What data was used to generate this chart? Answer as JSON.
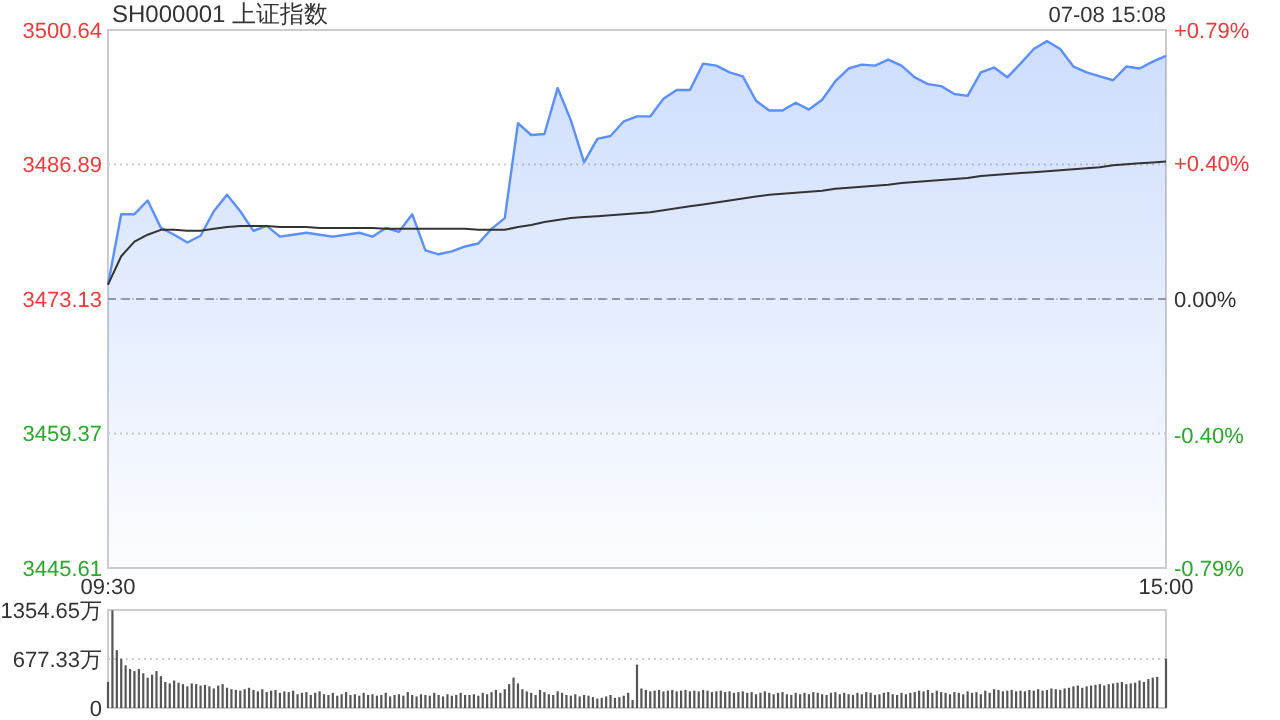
{
  "chart_data": [
    {
      "type": "line",
      "title": "SH000001 上证指数",
      "annotations": [
        "07-08 15:08"
      ],
      "categories": [
        "09:30",
        null,
        null,
        null,
        null,
        null,
        null,
        null,
        null,
        null,
        null,
        null,
        null,
        null,
        null,
        null,
        null,
        null,
        null,
        null,
        null,
        null,
        null,
        null,
        null,
        null,
        null,
        null,
        null,
        null,
        null,
        null,
        null,
        null,
        null,
        null,
        null,
        null,
        null,
        null,
        null,
        null,
        null,
        null,
        null,
        null,
        null,
        null,
        null,
        null,
        null,
        null,
        null,
        null,
        null,
        null,
        null,
        null,
        null,
        null,
        null,
        null,
        null,
        null,
        null,
        null,
        null,
        null,
        null,
        null,
        null,
        null,
        null,
        null,
        null,
        null,
        null,
        null,
        null,
        null,
        "15:00"
      ],
      "ylim": [
        3445.61,
        3500.64
      ],
      "yticks": [
        3445.61,
        3459.37,
        3473.13,
        3486.89,
        3500.64
      ],
      "y2lim": [
        -0.79,
        0.79
      ],
      "y2ticks": [
        {
          "value": -0.79,
          "label": "-0.79%"
        },
        {
          "value": -0.4,
          "label": "-0.40%"
        },
        {
          "value": 0,
          "label": "0.00%"
        },
        {
          "value": 0.4,
          "label": "+0.40%"
        },
        {
          "value": 0.79,
          "label": "+0.79%"
        }
      ],
      "grid": "y",
      "ref_lines": [
        {
          "axis": "y",
          "value": 3473.13,
          "line_style": "dashed",
          "color": "#999999"
        }
      ],
      "series": [
        {
          "type": "area",
          "color": "#5b8ff9",
          "values": [
            3474.6,
            3481.8,
            3481.8,
            3483.2,
            3480.4,
            3479.7,
            3478.9,
            3479.6,
            3482.1,
            3483.8,
            3482.1,
            3480.1,
            3480.6,
            3479.5,
            3479.7,
            3479.9,
            3479.7,
            3479.5,
            3479.7,
            3479.9,
            3479.5,
            3480.4,
            3480.0,
            3481.8,
            3478.1,
            3477.7,
            3478.0,
            3478.5,
            3478.8,
            3480.3,
            3481.4,
            3491.1,
            3489.9,
            3490.0,
            3494.7,
            3491.4,
            3487.1,
            3489.5,
            3489.8,
            3491.3,
            3491.8,
            3491.8,
            3493.6,
            3494.5,
            3494.5,
            3497.2,
            3497.0,
            3496.3,
            3495.9,
            3493.4,
            3492.4,
            3492.4,
            3493.2,
            3492.5,
            3493.5,
            3495.4,
            3496.7,
            3497.1,
            3497.0,
            3497.6,
            3497.0,
            3495.8,
            3495.1,
            3494.9,
            3494.1,
            3493.9,
            3496.3,
            3496.8,
            3495.8,
            3497.2,
            3498.7,
            3499.5,
            3498.7,
            3496.9,
            3496.3,
            3495.9,
            3495.5,
            3496.9,
            3496.7,
            3497.4,
            3498.0
          ]
        },
        {
          "color": "#333333",
          "values": [
            3474.6,
            3477.5,
            3479.0,
            3479.7,
            3480.2,
            3480.2,
            3480.1,
            3480.1,
            3480.3,
            3480.5,
            3480.6,
            3480.6,
            3480.6,
            3480.5,
            3480.5,
            3480.5,
            3480.4,
            3480.4,
            3480.4,
            3480.4,
            3480.4,
            3480.3,
            3480.3,
            3480.3,
            3480.3,
            3480.3,
            3480.3,
            3480.3,
            3480.2,
            3480.2,
            3480.2,
            3480.5,
            3480.7,
            3481.0,
            3481.2,
            3481.4,
            3481.5,
            3481.6,
            3481.7,
            3481.8,
            3481.9,
            3482.0,
            3482.2,
            3482.4,
            3482.6,
            3482.8,
            3483.0,
            3483.2,
            3483.4,
            3483.6,
            3483.8,
            3483.9,
            3484.0,
            3484.1,
            3484.2,
            3484.4,
            3484.5,
            3484.6,
            3484.7,
            3484.8,
            3485.0,
            3485.1,
            3485.2,
            3485.3,
            3485.4,
            3485.5,
            3485.7,
            3485.8,
            3485.9,
            3486.0,
            3486.1,
            3486.2,
            3486.3,
            3486.4,
            3486.5,
            3486.6,
            3486.8,
            3486.9,
            3487.0,
            3487.1,
            3487.2
          ]
        }
      ]
    },
    {
      "type": "bar",
      "ylim": [
        0,
        1354.65
      ],
      "yticks": [
        0,
        {
          "value": 677.33,
          "label": "677.33万"
        },
        {
          "value": 1354.65,
          "label": "1354.65万"
        }
      ],
      "grid": "y",
      "tick_labels": "y",
      "categories": [
        null,
        null,
        null,
        null,
        null,
        null,
        null,
        null,
        null,
        null,
        null,
        null,
        null,
        null,
        null,
        null,
        null,
        null,
        null,
        null,
        null,
        null,
        null,
        null,
        null,
        null,
        null,
        null,
        null,
        null,
        null,
        null,
        null,
        null,
        null,
        null,
        null,
        null,
        null,
        null,
        null,
        null,
        null,
        null,
        null,
        null,
        null,
        null,
        null,
        null,
        null,
        null,
        null,
        null,
        null,
        null,
        null,
        null,
        null,
        null,
        null,
        null,
        null,
        null,
        null,
        null,
        null,
        null,
        null,
        null,
        null,
        null,
        null,
        null,
        null,
        null,
        null,
        null,
        null,
        null,
        null,
        null,
        null,
        null,
        null,
        null,
        null,
        null,
        null,
        null,
        null,
        null,
        null,
        null,
        null,
        null,
        null,
        null,
        null,
        null,
        null,
        null,
        null,
        null,
        null,
        null,
        null,
        null,
        null,
        null,
        null,
        null,
        null,
        null,
        null,
        null,
        null,
        null,
        null,
        null,
        null,
        null,
        null,
        null,
        null,
        null,
        null,
        null,
        null,
        null,
        null,
        null,
        null,
        null,
        null,
        null,
        null,
        null,
        null,
        null,
        null,
        null,
        null,
        null,
        null,
        null,
        null,
        null,
        null,
        null,
        null,
        null,
        null,
        null,
        null,
        null,
        null,
        null,
        null,
        null,
        null,
        null,
        null,
        null,
        null,
        null,
        null,
        null,
        null,
        null,
        null,
        null,
        null,
        null,
        null,
        null,
        null,
        null,
        null,
        null,
        null,
        null,
        null,
        null,
        null,
        null,
        null,
        null,
        null,
        null,
        null,
        null,
        null,
        null,
        null,
        null,
        null,
        null,
        null,
        null,
        null,
        null,
        null,
        null,
        null,
        null,
        null,
        null,
        null,
        null,
        null,
        null,
        null,
        null,
        null,
        null,
        null,
        null,
        null,
        null,
        null,
        null,
        null,
        null,
        null,
        null,
        null,
        null,
        null,
        null,
        null,
        null,
        null,
        null,
        null,
        null,
        null,
        null,
        null,
        null,
        null
      ],
      "series": [
        {
          "color": "#555555",
          "values": [
            360,
            1350,
            800,
            680,
            590,
            540,
            510,
            540,
            480,
            420,
            460,
            510,
            440,
            360,
            340,
            380,
            350,
            330,
            300,
            340,
            330,
            310,
            320,
            300,
            270,
            310,
            330,
            280,
            260,
            250,
            240,
            260,
            280,
            250,
            230,
            260,
            220,
            240,
            250,
            210,
            230,
            220,
            240,
            190,
            210,
            220,
            180,
            210,
            230,
            190,
            180,
            210,
            170,
            190,
            220,
            180,
            190,
            170,
            210,
            180,
            190,
            170,
            180,
            210,
            160,
            180,
            190,
            170,
            220,
            180,
            160,
            190,
            180,
            170,
            210,
            180,
            160,
            190,
            170,
            180,
            210,
            180,
            180,
            190,
            170,
            210,
            190,
            220,
            250,
            210,
            260,
            330,
            420,
            340,
            260,
            230,
            210,
            180,
            250,
            220,
            190,
            180,
            230,
            210,
            180,
            170,
            190,
            160,
            180,
            170,
            150,
            130,
            140,
            160,
            180,
            140,
            150,
            170,
            210,
            110,
            600,
            270,
            250,
            230,
            240,
            250,
            230,
            240,
            250,
            230,
            240,
            250,
            230,
            240,
            230,
            250,
            240,
            220,
            230,
            240,
            220,
            230,
            210,
            220,
            230,
            210,
            220,
            190,
            210,
            230,
            210,
            190,
            210,
            220,
            190,
            180,
            210,
            190,
            210,
            190,
            220,
            210,
            190,
            180,
            210,
            220,
            190,
            210,
            190,
            180,
            210,
            190,
            220,
            210,
            180,
            190,
            210,
            220,
            190,
            180,
            210,
            190,
            210,
            220,
            240,
            230,
            250,
            210,
            240,
            220,
            210,
            190,
            220,
            210,
            190,
            230,
            210,
            220,
            190,
            240,
            210,
            260,
            250,
            230,
            240,
            250,
            230,
            240,
            230,
            250,
            240,
            260,
            240,
            250,
            270,
            260,
            250,
            270,
            280,
            300,
            310,
            280,
            300,
            310,
            320,
            330,
            310,
            330,
            340,
            350,
            360,
            330,
            340,
            350,
            380,
            360,
            400,
            420,
            430,
            null,
            680
          ]
        }
      ]
    }
  ]
}
